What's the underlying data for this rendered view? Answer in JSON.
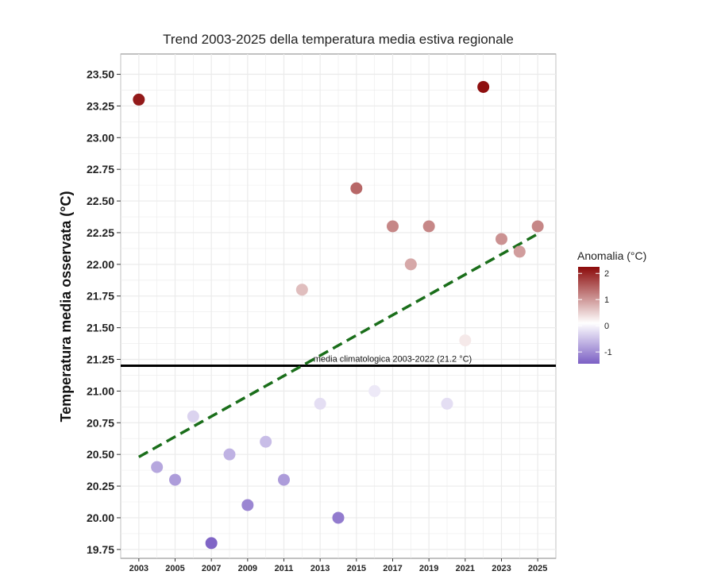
{
  "chart_data": {
    "type": "scatter",
    "title": "Trend 2003-2025 della temperatura media estiva regionale",
    "ylabel": "Temperatura media osservata (°C)",
    "xlabel": "",
    "xlim": [
      2002,
      2026
    ],
    "ylim": [
      19.68,
      23.66
    ],
    "grid": true,
    "x_ticks": [
      2003,
      2005,
      2007,
      2009,
      2011,
      2013,
      2015,
      2017,
      2019,
      2021,
      2023,
      2025
    ],
    "y_ticks": [
      "19.75",
      "20.00",
      "20.25",
      "20.50",
      "20.75",
      "21.00",
      "21.25",
      "21.50",
      "21.75",
      "22.00",
      "22.25",
      "22.50",
      "22.75",
      "23.00",
      "23.25",
      "23.50"
    ],
    "climatology": {
      "value": 21.2,
      "label": "media climatologica 2003-2022 (21.2 °C)"
    },
    "trend": {
      "style": "dashed",
      "color": "#1a6e1a",
      "x": [
        2003,
        2025
      ],
      "y": [
        20.48,
        22.24
      ]
    },
    "points": [
      {
        "x": 2003,
        "y": 23.3
      },
      {
        "x": 2004,
        "y": 20.4
      },
      {
        "x": 2005,
        "y": 20.3
      },
      {
        "x": 2006,
        "y": 20.8
      },
      {
        "x": 2007,
        "y": 19.8
      },
      {
        "x": 2008,
        "y": 20.5
      },
      {
        "x": 2009,
        "y": 20.1
      },
      {
        "x": 2010,
        "y": 20.6
      },
      {
        "x": 2011,
        "y": 20.3
      },
      {
        "x": 2012,
        "y": 21.8
      },
      {
        "x": 2013,
        "y": 20.9
      },
      {
        "x": 2014,
        "y": 20.0
      },
      {
        "x": 2015,
        "y": 22.6
      },
      {
        "x": 2016,
        "y": 21.0
      },
      {
        "x": 2017,
        "y": 22.3
      },
      {
        "x": 2018,
        "y": 22.0
      },
      {
        "x": 2019,
        "y": 22.3
      },
      {
        "x": 2020,
        "y": 20.9
      },
      {
        "x": 2021,
        "y": 21.4
      },
      {
        "x": 2022,
        "y": 23.4
      },
      {
        "x": 2023,
        "y": 22.2
      },
      {
        "x": 2024,
        "y": 22.1
      },
      {
        "x": 2025,
        "y": 22.3
      }
    ],
    "legend": {
      "title": "Anomalia (°C)",
      "placement": "right",
      "ticks": [
        "2",
        "1",
        "0",
        "-1"
      ],
      "range": [
        -1.45,
        2.25
      ],
      "colors": {
        "low": "#7b5fc4",
        "mid": "#ffffff",
        "high": "#8b0a0a"
      }
    }
  }
}
